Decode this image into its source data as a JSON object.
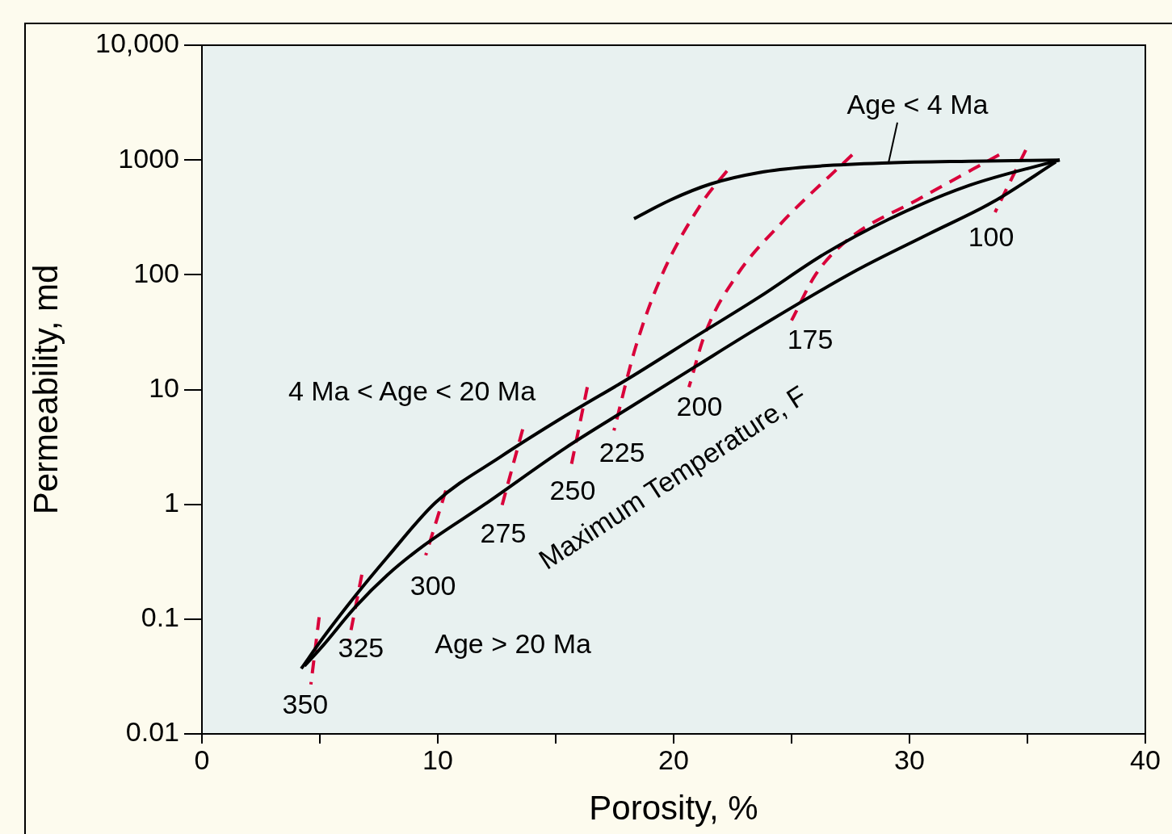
{
  "chart_data": {
    "type": "line",
    "xlabel": "Porosity, %",
    "ylabel": "Permeability, md",
    "log": "y",
    "grid": false,
    "legend": false,
    "marker": "none",
    "xlim": [
      0,
      40
    ],
    "xticks": [
      0,
      {
        "value": 5,
        "label": null
      },
      10,
      {
        "value": 15,
        "label": null
      },
      20,
      {
        "value": 25,
        "label": null
      },
      30,
      {
        "value": 35,
        "label": null
      },
      40
    ],
    "ylim": [
      0.01,
      10000
    ],
    "yticks": [
      0.01,
      0.1,
      1,
      10,
      100,
      1000,
      {
        "value": 10000,
        "label": "10,000"
      }
    ],
    "series": [
      {
        "name": "Age < 4 Ma",
        "color": "#000000",
        "line_style": "solid",
        "x": [
          18.32,
          19.86,
          21.58,
          23.63,
          25.68,
          29.11,
          32.53,
          36.37
        ],
        "values": [
          308,
          448,
          619,
          777,
          870,
          943,
          975,
          1000
        ]
      },
      {
        "name": "4 Ma < Age < 20 Ma",
        "color": "#000000",
        "line_style": "solid",
        "x": [
          4.21,
          5.14,
          6.51,
          7.88,
          9.93,
          12.67,
          15.41,
          18.15,
          20.89,
          23.63,
          26.37,
          29.11,
          32.53,
          36.37
        ],
        "values": [
          0.037,
          0.069,
          0.16,
          0.35,
          1.05,
          2.6,
          5.9,
          12.7,
          28.6,
          64,
          151,
          304,
          600,
          1000
        ]
      },
      {
        "name": "Age > 20 Ma",
        "color": "#000000",
        "line_style": "solid",
        "x": [
          4.35,
          5.14,
          6.51,
          7.88,
          9.42,
          11.99,
          15.41,
          18.15,
          20.89,
          23.63,
          27.74,
          30.82,
          33.56,
          36.2
        ],
        "values": [
          0.039,
          0.059,
          0.128,
          0.244,
          0.44,
          1,
          3.1,
          7.0,
          15.7,
          35,
          109,
          227,
          433,
          960
        ]
      },
      {
        "name": "350",
        "color": "#d9003a",
        "line_style": "dashed",
        "x": [
          4.97,
          4.62
        ],
        "values": [
          0.104,
          0.027
        ]
      },
      {
        "name": "325",
        "color": "#d9003a",
        "line_style": "dashed",
        "x": [
          6.78,
          6.23
        ],
        "values": [
          0.244,
          0.064
        ]
      },
      {
        "name": "300",
        "color": "#d9003a",
        "line_style": "dashed",
        "x": [
          10.34,
          9.49
        ],
        "values": [
          1.32,
          0.36
        ]
      },
      {
        "name": "275",
        "color": "#d9003a",
        "line_style": "dashed",
        "x": [
          13.6,
          12.67
        ],
        "values": [
          4.5,
          0.89
        ]
      },
      {
        "name": "250",
        "color": "#d9003a",
        "line_style": "dashed",
        "x": [
          16.34,
          15.65
        ],
        "values": [
          10.5,
          2.14
        ]
      },
      {
        "name": "225",
        "color": "#d9003a",
        "line_style": "dashed",
        "x": [
          22.26,
          21.23,
          19.52,
          18.39,
          17.47
        ],
        "values": [
          802,
          433,
          101,
          23.5,
          4.4
        ]
      },
      {
        "name": "200",
        "color": "#d9003a",
        "line_style": "dashed",
        "x": [
          27.57,
          24.55,
          22.71,
          21.34,
          20.65
        ],
        "values": [
          1109,
          280,
          101,
          31,
          10.5
        ]
      },
      {
        "name": "175",
        "color": "#d9003a",
        "line_style": "dashed",
        "x": [
          33.8,
          30.38,
          27.4,
          26.03,
          25.0
        ],
        "values": [
          1109,
          455,
          203,
          101,
          40
        ]
      },
      {
        "name": "100",
        "color": "#d9003a",
        "line_style": "dashed",
        "x": [
          34.93,
          33.63
        ],
        "values": [
          1222,
          351
        ]
      }
    ],
    "annotations": [
      "Maximum Temperature, F"
    ]
  }
}
